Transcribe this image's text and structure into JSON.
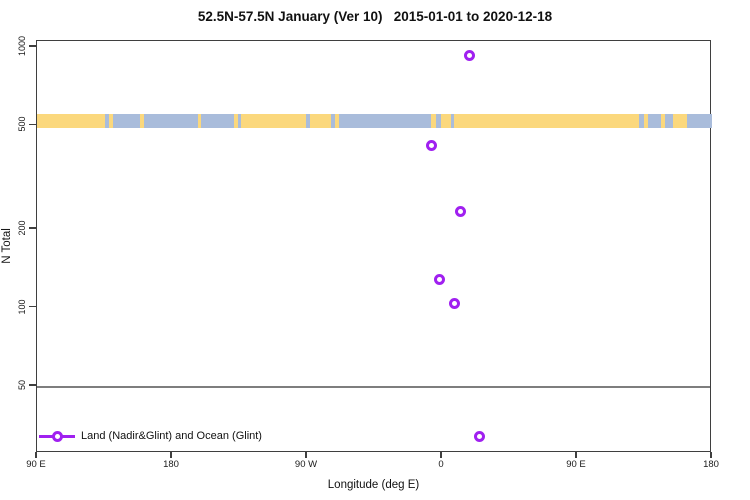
{
  "chart_data": {
    "type": "scatter",
    "title": "52.5N-57.5N January (Ver 10)   2015-01-01 to 2020-12-18",
    "xlabel": "Longitude (deg E)",
    "ylabel": "N Total",
    "legend": "Land (Nadir&Glint) and Ocean (Glint)",
    "legend_position": "bottom-left-inside",
    "y_scale": "log",
    "ylim": [
      28,
      1050
    ],
    "x_axis_note": "x spans 450 deg eastward from 90E, wrapping the globe: 90E>180>90W>0>90E>180",
    "x_ticks": [
      {
        "lon": 90,
        "label": "90 E"
      },
      {
        "lon": 180,
        "label": "180"
      },
      {
        "lon": 270,
        "label": "90 W"
      },
      {
        "lon": 360,
        "label": "0"
      },
      {
        "lon": 450,
        "label": "90 E"
      },
      {
        "lon": 540,
        "label": "180"
      }
    ],
    "y_ticks": [
      {
        "v": 1000,
        "label": "1000"
      },
      {
        "v": 500,
        "label": "500"
      },
      {
        "v": 200,
        "label": "200"
      },
      {
        "v": 100,
        "label": "100"
      },
      {
        "v": 50,
        "label": "50"
      }
    ],
    "reference_line": {
      "value": 50,
      "color": "#7e7e7e"
    },
    "points": [
      {
        "lon": 18,
        "n": 930
      },
      {
        "lon": -7,
        "n": 420
      },
      {
        "lon": 12,
        "n": 233
      },
      {
        "lon": -2,
        "n": 128
      },
      {
        "lon": 8,
        "n": 104
      },
      {
        "lon": 25,
        "n": 32
      }
    ],
    "marker": {
      "shape": "open-circle",
      "color": "#A020F0"
    },
    "land_ocean_band": {
      "at_value": 500,
      "land_color": "#FBD87D",
      "ocean_color": "#A9BCDB",
      "segments": [
        [
          0.0,
          0.101,
          "land"
        ],
        [
          0.101,
          0.107,
          "ocean"
        ],
        [
          0.107,
          0.113,
          "land"
        ],
        [
          0.113,
          0.153,
          "ocean"
        ],
        [
          0.153,
          0.159,
          "land"
        ],
        [
          0.159,
          0.239,
          "ocean"
        ],
        [
          0.239,
          0.243,
          "land"
        ],
        [
          0.243,
          0.292,
          "ocean"
        ],
        [
          0.292,
          0.298,
          "land"
        ],
        [
          0.298,
          0.302,
          "ocean"
        ],
        [
          0.302,
          0.399,
          "land"
        ],
        [
          0.399,
          0.404,
          "ocean"
        ],
        [
          0.404,
          0.436,
          "land"
        ],
        [
          0.436,
          0.442,
          "ocean"
        ],
        [
          0.442,
          0.447,
          "land"
        ],
        [
          0.447,
          0.584,
          "ocean"
        ],
        [
          0.584,
          0.591,
          "land"
        ],
        [
          0.591,
          0.599,
          "ocean"
        ],
        [
          0.599,
          0.613,
          "land"
        ],
        [
          0.613,
          0.618,
          "ocean"
        ],
        [
          0.618,
          0.892,
          "land"
        ],
        [
          0.892,
          0.899,
          "ocean"
        ],
        [
          0.899,
          0.905,
          "land"
        ],
        [
          0.905,
          0.924,
          "ocean"
        ],
        [
          0.924,
          0.93,
          "land"
        ],
        [
          0.93,
          0.942,
          "ocean"
        ],
        [
          0.942,
          0.963,
          "land"
        ],
        [
          0.963,
          1.0,
          "ocean"
        ]
      ]
    },
    "colors": {
      "marker": "#A020F0",
      "axis": "#3f3f3f",
      "reference_line": "#7e7e7e",
      "land": "#FBD87D",
      "ocean": "#A9BCDB"
    }
  }
}
